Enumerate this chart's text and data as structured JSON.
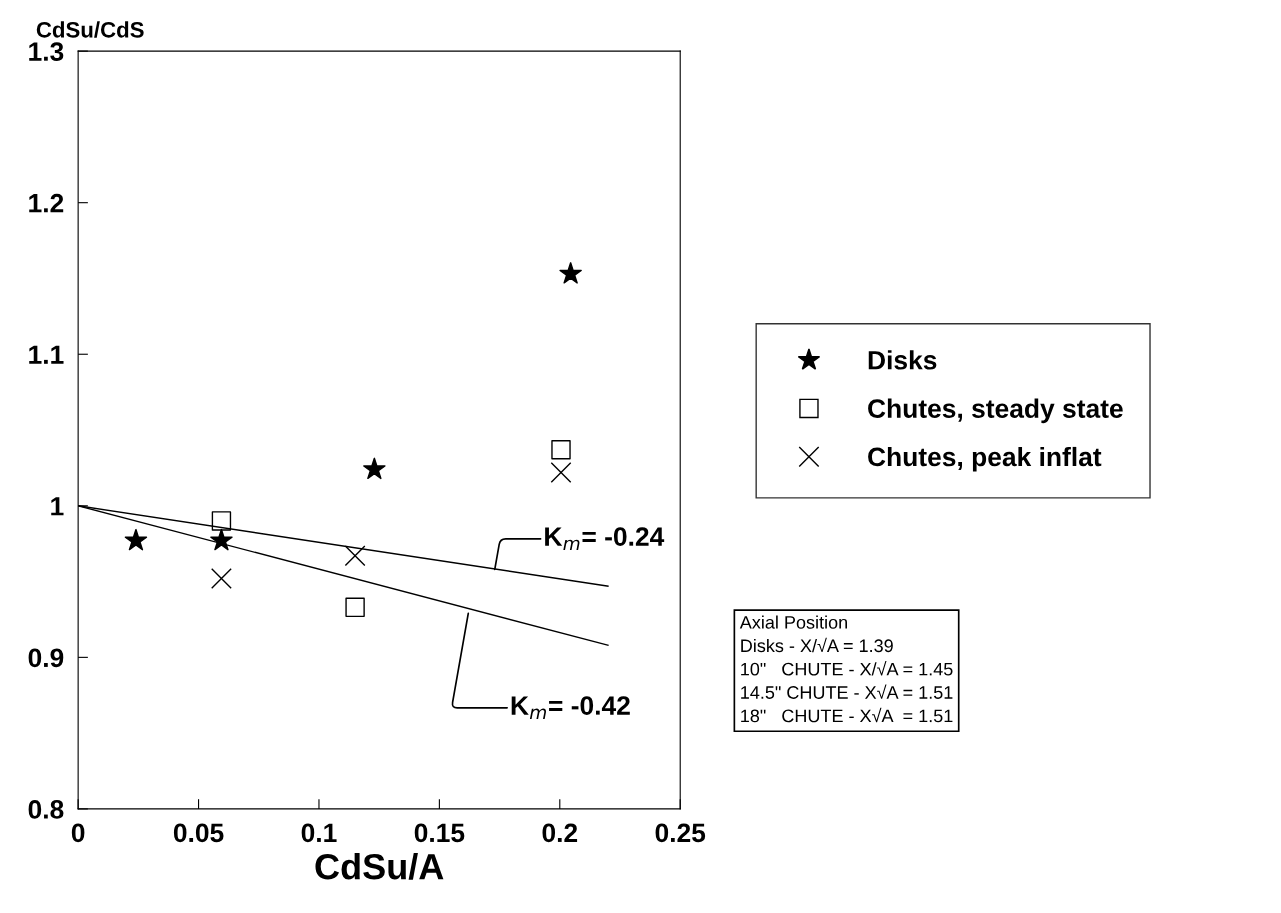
{
  "chart_data": {
    "type": "scatter",
    "xlabel": "CdSu/A",
    "ylabel": "CdSu/CdS",
    "xlim": [
      0,
      0.25
    ],
    "xticks": [
      0,
      0.05,
      0.1,
      0.15,
      0.2,
      0.25
    ],
    "ylim": [
      0.8,
      1.3
    ],
    "yticks": [
      0.8,
      0.9,
      {
        "value": 1.0,
        "label": "1"
      },
      1.1,
      1.2,
      1.3
    ],
    "grid": false,
    "legend": "right",
    "series": [
      {
        "name": "Disks",
        "color": "#000000",
        "marker": "star",
        "x": [
          0.024,
          0.0595,
          0.123,
          0.2045
        ],
        "values": [
          0.977,
          0.977,
          1.024,
          1.153
        ]
      },
      {
        "name": "Chutes, steady state",
        "color": "#000000",
        "marker": "square",
        "x": [
          0.0595,
          0.115,
          0.2005
        ],
        "values": [
          0.99,
          0.933,
          1.037
        ]
      },
      {
        "name": "Chutes, peak inflat",
        "color": "#000000",
        "marker": "cross",
        "x": [
          0.0595,
          0.115,
          0.2005
        ],
        "values": [
          0.952,
          0.967,
          1.022
        ]
      },
      {
        "type": "line",
        "color": "#000000",
        "marker": "none",
        "x": [
          0,
          0.22
        ],
        "values": [
          1.0,
          0.947
        ]
      },
      {
        "type": "line",
        "color": "#000000",
        "marker": "none",
        "x": [
          0,
          0.22
        ],
        "values": [
          1.0,
          0.908
        ]
      }
    ],
    "annotations": [
      {
        "text": "K$_{m}$= -0.24",
        "x": 0.173,
        "y": 0.958
      },
      {
        "text": "K$_{m}$= -0.42",
        "x": 0.162,
        "y": 0.929
      },
      "Axial Position\nDisks - X/√A = 1.39\n10\"   CHUTE - X/√A = 1.45\n14.5\" CHUTE - X√A = 1.51\n18\"   CHUTE - X√A  = 1.51"
    ]
  }
}
